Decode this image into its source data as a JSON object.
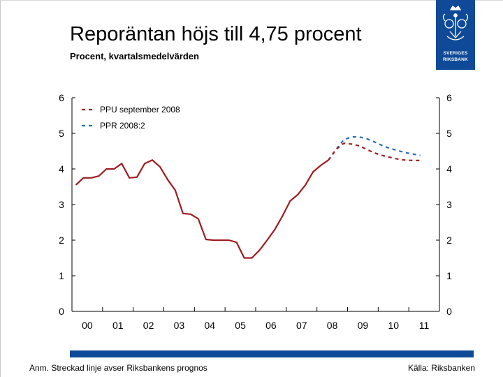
{
  "header": {
    "title": "Reporäntan höjs till 4,75 procent",
    "subtitle": "Procent, kvartalsmedelvärden"
  },
  "logo": {
    "line1": "SVERIGES",
    "line2": "RIKSBANK",
    "icon": "riksbank-crest-icon",
    "color": "#0e4a97"
  },
  "footer": {
    "note": "Anm. Streckad linje avser Riksbankens prognos",
    "source": "Källa: Riksbanken",
    "bar_color": "#0e4a97"
  },
  "chart_data": {
    "type": "line",
    "title": "Reporäntan höjs till 4,75 procent",
    "subtitle": "Procent, kvartalsmedelvärden",
    "x_tick_labels": [
      "00",
      "01",
      "02",
      "03",
      "04",
      "05",
      "06",
      "07",
      "08",
      "09",
      "10",
      "11"
    ],
    "x_range": [
      2000,
      2012
    ],
    "y_range": [
      0,
      6
    ],
    "y_ticks": [
      "0",
      "1",
      "2",
      "3",
      "4",
      "5",
      "6"
    ],
    "y_axis_both_sides": true,
    "grid": false,
    "legend_position": "top-left",
    "series": [
      {
        "style": "solid",
        "color": "#a01c20",
        "points": [
          [
            2000.125,
            3.55
          ],
          [
            2000.375,
            3.75
          ],
          [
            2000.625,
            3.75
          ],
          [
            2000.875,
            3.8
          ],
          [
            2001.125,
            4.0
          ],
          [
            2001.375,
            4.0
          ],
          [
            2001.625,
            4.15
          ],
          [
            2001.875,
            3.75
          ],
          [
            2002.125,
            3.77
          ],
          [
            2002.375,
            4.15
          ],
          [
            2002.625,
            4.25
          ],
          [
            2002.875,
            4.06
          ],
          [
            2003.125,
            3.7
          ],
          [
            2003.375,
            3.4
          ],
          [
            2003.625,
            2.75
          ],
          [
            2003.875,
            2.73
          ],
          [
            2004.125,
            2.6
          ],
          [
            2004.375,
            2.02
          ],
          [
            2004.625,
            2.0
          ],
          [
            2004.875,
            2.0
          ],
          [
            2005.125,
            2.0
          ],
          [
            2005.375,
            1.94
          ],
          [
            2005.625,
            1.5
          ],
          [
            2005.875,
            1.5
          ],
          [
            2006.125,
            1.72
          ],
          [
            2006.375,
            2.0
          ],
          [
            2006.625,
            2.3
          ],
          [
            2006.875,
            2.68
          ],
          [
            2007.125,
            3.1
          ],
          [
            2007.375,
            3.28
          ],
          [
            2007.625,
            3.55
          ],
          [
            2007.875,
            3.92
          ],
          [
            2008.125,
            4.1
          ],
          [
            2008.375,
            4.25
          ]
        ]
      },
      {
        "name": "PPR 2008:2",
        "style": "dashed",
        "color": "#2a6db4",
        "points": [
          [
            2008.375,
            4.25
          ],
          [
            2008.625,
            4.55
          ],
          [
            2008.875,
            4.82
          ],
          [
            2009.125,
            4.9
          ],
          [
            2009.375,
            4.9
          ],
          [
            2009.625,
            4.85
          ],
          [
            2009.875,
            4.76
          ],
          [
            2010.125,
            4.66
          ],
          [
            2010.375,
            4.58
          ],
          [
            2010.625,
            4.52
          ],
          [
            2010.875,
            4.46
          ],
          [
            2011.125,
            4.42
          ],
          [
            2011.375,
            4.38
          ]
        ]
      },
      {
        "name": "PPU september 2008",
        "style": "dashed",
        "color": "#a01c20",
        "points": [
          [
            2008.375,
            4.25
          ],
          [
            2008.625,
            4.55
          ],
          [
            2008.875,
            4.72
          ],
          [
            2009.125,
            4.7
          ],
          [
            2009.375,
            4.65
          ],
          [
            2009.625,
            4.55
          ],
          [
            2009.875,
            4.45
          ],
          [
            2010.125,
            4.38
          ],
          [
            2010.375,
            4.33
          ],
          [
            2010.625,
            4.28
          ],
          [
            2010.875,
            4.25
          ],
          [
            2011.125,
            4.24
          ],
          [
            2011.375,
            4.24
          ]
        ]
      }
    ],
    "legend": [
      {
        "label": "PPU september 2008",
        "color": "#a01c20",
        "style": "dashed"
      },
      {
        "label": "PPR 2008:2",
        "color": "#2a6db4",
        "style": "dashed"
      }
    ]
  }
}
